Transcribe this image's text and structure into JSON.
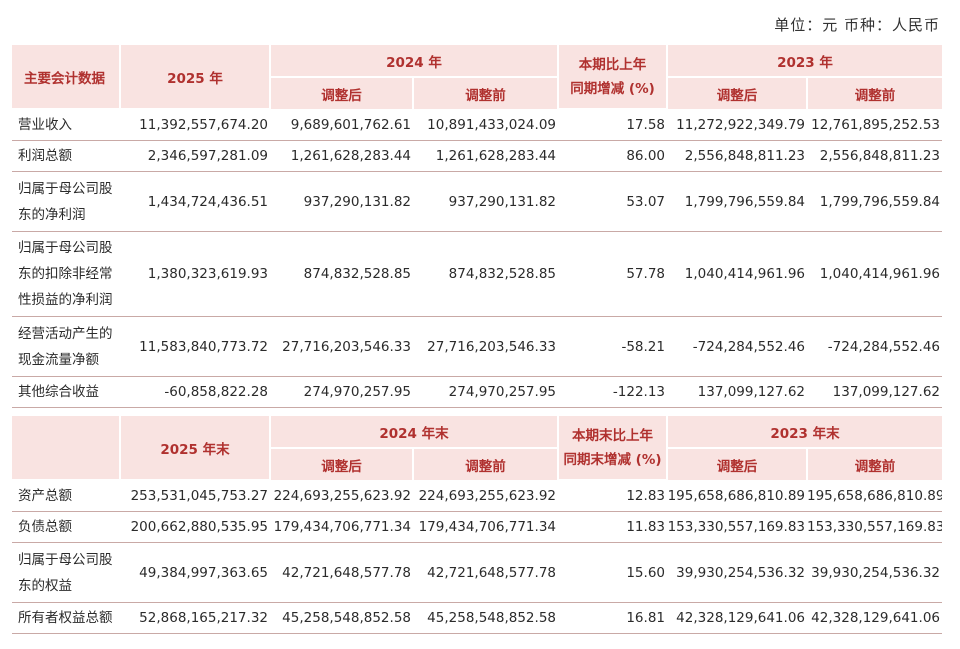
{
  "unit_text": "单位：元  币种：人民币",
  "header1": {
    "col_label": "主要会计数据",
    "year_a": "2025 年",
    "year_b": "2024 年",
    "change_line1": "本期比上年",
    "change_line2": "同期增减 (%)",
    "year_c": "2023 年",
    "adjusted": "调整后",
    "before_adjust": "调整前"
  },
  "rows1": [
    {
      "label": [
        "营业收入"
      ],
      "v2025": "11,392,557,674.20",
      "v2024_adj": "9,689,601,762.61",
      "v2024_pre": "10,891,433,024.09",
      "chg": "17.58",
      "v2023_adj": "11,272,922,349.79",
      "v2023_pre": "12,761,895,252.53"
    },
    {
      "label": [
        "利润总额"
      ],
      "v2025": "2,346,597,281.09",
      "v2024_adj": "1,261,628,283.44",
      "v2024_pre": "1,261,628,283.44",
      "chg": "86.00",
      "v2023_adj": "2,556,848,811.23",
      "v2023_pre": "2,556,848,811.23"
    },
    {
      "label": [
        "归属于母公司股",
        "东的净利润"
      ],
      "v2025": "1,434,724,436.51",
      "v2024_adj": "937,290,131.82",
      "v2024_pre": "937,290,131.82",
      "chg": "53.07",
      "v2023_adj": "1,799,796,559.84",
      "v2023_pre": "1,799,796,559.84"
    },
    {
      "label": [
        "归属于母公司股",
        "东的扣除非经常",
        "性损益的净利润"
      ],
      "v2025": "1,380,323,619.93",
      "v2024_adj": "874,832,528.85",
      "v2024_pre": "874,832,528.85",
      "chg": "57.78",
      "v2023_adj": "1,040,414,961.96",
      "v2023_pre": "1,040,414,961.96"
    },
    {
      "label": [
        "经营活动产生的",
        "现金流量净额"
      ],
      "v2025": "11,583,840,773.72",
      "v2024_adj": "27,716,203,546.33",
      "v2024_pre": "27,716,203,546.33",
      "chg": "-58.21",
      "v2023_adj": "-724,284,552.46",
      "v2023_pre": "-724,284,552.46"
    },
    {
      "label": [
        "其他综合收益"
      ],
      "v2025": "-60,858,822.28",
      "v2024_adj": "274,970,257.95",
      "v2024_pre": "274,970,257.95",
      "chg": "-122.13",
      "v2023_adj": "137,099,127.62",
      "v2023_pre": "137,099,127.62"
    }
  ],
  "header2": {
    "year_a": "2025 年末",
    "year_b": "2024 年末",
    "change_line1": "本期末比上年",
    "change_line2": "同期末增减 (%)",
    "year_c": "2023 年末",
    "adjusted": "调整后",
    "before_adjust": "调整前"
  },
  "rows2": [
    {
      "label": [
        "资产总额"
      ],
      "v2025": "253,531,045,753.27",
      "v2024_adj": "224,693,255,623.92",
      "v2024_pre": "224,693,255,623.92",
      "chg": "12.83",
      "v2023_adj": "195,658,686,810.89",
      "v2023_pre": "195,658,686,810.89"
    },
    {
      "label": [
        "负债总额"
      ],
      "v2025": "200,662,880,535.95",
      "v2024_adj": "179,434,706,771.34",
      "v2024_pre": "179,434,706,771.34",
      "chg": "11.83",
      "v2023_adj": "153,330,557,169.83",
      "v2023_pre": "153,330,557,169.83"
    },
    {
      "label": [
        "归属于母公司股",
        "东的权益"
      ],
      "v2025": "49,384,997,363.65",
      "v2024_adj": "42,721,648,577.78",
      "v2024_pre": "42,721,648,577.78",
      "chg": "15.60",
      "v2023_adj": "39,930,254,536.32",
      "v2023_pre": "39,930,254,536.32"
    },
    {
      "label": [
        "所有者权益总额"
      ],
      "v2025": "52,868,165,217.32",
      "v2024_adj": "45,258,548,852.58",
      "v2024_pre": "45,258,548,852.58",
      "chg": "16.81",
      "v2023_adj": "42,328,129,641.06",
      "v2023_pre": "42,328,129,641.06"
    }
  ]
}
